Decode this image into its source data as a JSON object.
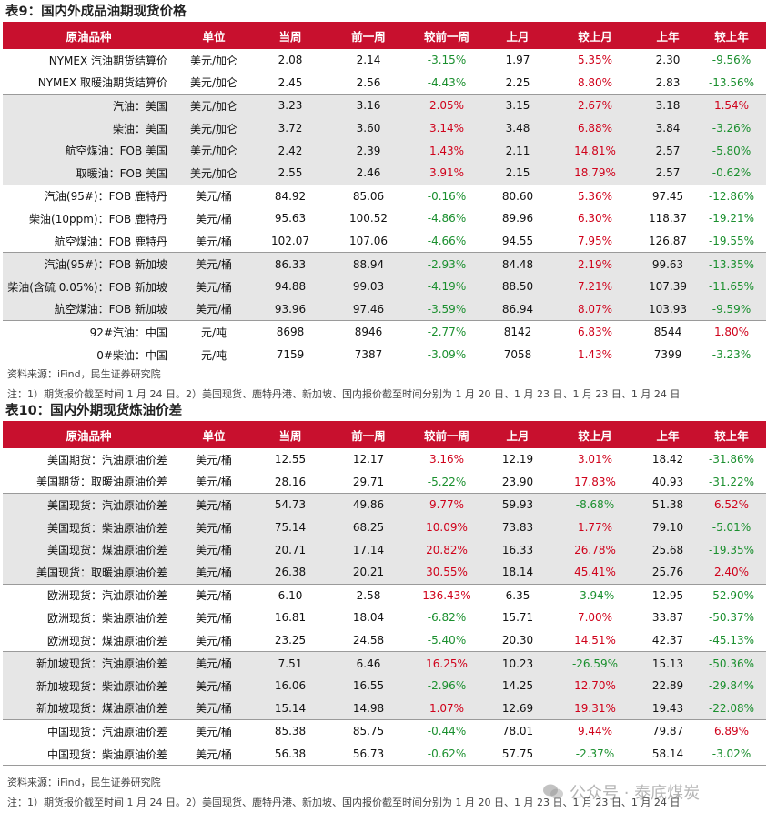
{
  "table9": {
    "title": "表9：国内外成品油期现货价格",
    "headers": [
      "原油品种",
      "单位",
      "当周",
      "前一周",
      "较前一周",
      "上月",
      "较上月",
      "上年",
      "较上年"
    ],
    "rows": [
      [
        "NYMEX 汽油期货结算价",
        "美元/加仑",
        "2.08",
        "2.14",
        "-3.15%",
        "1.97",
        "5.35%",
        "2.30",
        "-9.56%"
      ],
      [
        "NYMEX 取暖油期货结算价",
        "美元/加仑",
        "2.45",
        "2.56",
        "-4.43%",
        "2.25",
        "8.80%",
        "2.83",
        "-13.56%"
      ],
      [
        "汽油：美国",
        "美元/加仑",
        "3.23",
        "3.16",
        "2.05%",
        "3.15",
        "2.67%",
        "3.18",
        "1.54%"
      ],
      [
        "柴油：美国",
        "美元/加仑",
        "3.72",
        "3.60",
        "3.14%",
        "3.48",
        "6.88%",
        "3.84",
        "-3.26%"
      ],
      [
        "航空煤油：FOB 美国",
        "美元/加仑",
        "2.42",
        "2.39",
        "1.43%",
        "2.11",
        "14.81%",
        "2.57",
        "-5.80%"
      ],
      [
        "取暖油：FOB 美国",
        "美元/加仑",
        "2.55",
        "2.46",
        "3.91%",
        "2.15",
        "18.79%",
        "2.57",
        "-0.62%"
      ],
      [
        "汽油(95#)：FOB 鹿特丹",
        "美元/桶",
        "84.92",
        "85.06",
        "-0.16%",
        "80.60",
        "5.36%",
        "97.45",
        "-12.86%"
      ],
      [
        "柴油(10ppm)：FOB 鹿特丹",
        "美元/桶",
        "95.63",
        "100.52",
        "-4.86%",
        "89.96",
        "6.30%",
        "118.37",
        "-19.21%"
      ],
      [
        "航空煤油：FOB 鹿特丹",
        "美元/桶",
        "102.07",
        "107.06",
        "-4.66%",
        "94.55",
        "7.95%",
        "126.87",
        "-19.55%"
      ],
      [
        "汽油(95#)：FOB 新加坡",
        "美元/桶",
        "86.33",
        "88.94",
        "-2.93%",
        "84.48",
        "2.19%",
        "99.63",
        "-13.35%"
      ],
      [
        "柴油(含硫 0.05%)：FOB 新加坡",
        "美元/桶",
        "94.88",
        "99.03",
        "-4.19%",
        "88.50",
        "7.21%",
        "107.39",
        "-11.65%"
      ],
      [
        "航空煤油：FOB 新加坡",
        "美元/桶",
        "93.96",
        "97.46",
        "-3.59%",
        "86.94",
        "8.07%",
        "103.93",
        "-9.59%"
      ],
      [
        "92#汽油：中国",
        "元/吨",
        "8698",
        "8946",
        "-2.77%",
        "8142",
        "6.83%",
        "8544",
        "1.80%"
      ],
      [
        "0#柴油：中国",
        "元/吨",
        "7159",
        "7387",
        "-3.09%",
        "7058",
        "1.43%",
        "7399",
        "-3.23%"
      ]
    ],
    "source": "资料来源：iFind，民生证券研究院",
    "note": "注：1）期货报价截至时间 1 月 24 日。2）美国现货、鹿特丹港、新加坡、国内报价截至时间分别为 1 月 20 日、1 月 23 日、1 月 23 日、1 月 24 日"
  },
  "table10": {
    "title": "表10：国内外期现货炼油价差",
    "headers": [
      "原油品种",
      "单位",
      "当周",
      "前一周",
      "较前一周",
      "上月",
      "较上月",
      "上年",
      "较上年"
    ],
    "rows": [
      [
        "美国期货：汽油原油价差",
        "美元/桶",
        "12.55",
        "12.17",
        "3.16%",
        "12.19",
        "3.01%",
        "18.42",
        "-31.86%"
      ],
      [
        "美国期货：取暖油原油价差",
        "美元/桶",
        "28.16",
        "29.71",
        "-5.22%",
        "23.90",
        "17.83%",
        "40.93",
        "-31.22%"
      ],
      [
        "美国现货：汽油原油价差",
        "美元/桶",
        "54.73",
        "49.86",
        "9.77%",
        "59.93",
        "-8.68%",
        "51.38",
        "6.52%"
      ],
      [
        "美国现货：柴油原油价差",
        "美元/桶",
        "75.14",
        "68.25",
        "10.09%",
        "73.83",
        "1.77%",
        "79.10",
        "-5.01%"
      ],
      [
        "美国现货：煤油原油价差",
        "美元/桶",
        "20.71",
        "17.14",
        "20.82%",
        "16.33",
        "26.78%",
        "25.68",
        "-19.35%"
      ],
      [
        "美国现货：取暖油原油价差",
        "美元/桶",
        "26.38",
        "20.21",
        "30.55%",
        "18.14",
        "45.41%",
        "25.76",
        "2.40%"
      ],
      [
        "欧洲现货：汽油原油价差",
        "美元/桶",
        "6.10",
        "2.58",
        "136.43%",
        "6.35",
        "-3.94%",
        "12.95",
        "-52.90%"
      ],
      [
        "欧洲现货：柴油原油价差",
        "美元/桶",
        "16.81",
        "18.04",
        "-6.82%",
        "15.71",
        "7.00%",
        "33.87",
        "-50.37%"
      ],
      [
        "欧洲现货：煤油原油价差",
        "美元/桶",
        "23.25",
        "24.58",
        "-5.40%",
        "20.30",
        "14.51%",
        "42.37",
        "-45.13%"
      ],
      [
        "新加坡现货：汽油原油价差",
        "美元/桶",
        "7.51",
        "6.46",
        "16.25%",
        "10.23",
        "-26.59%",
        "15.13",
        "-50.36%"
      ],
      [
        "新加坡现货：柴油原油价差",
        "美元/桶",
        "16.06",
        "16.55",
        "-2.96%",
        "14.25",
        "12.70%",
        "22.89",
        "-29.84%"
      ],
      [
        "新加坡现货：煤油原油价差",
        "美元/桶",
        "15.14",
        "14.98",
        "1.07%",
        "12.69",
        "19.31%",
        "19.43",
        "-22.08%"
      ],
      [
        "中国现货：汽油原油价差",
        "美元/桶",
        "85.38",
        "85.75",
        "-0.44%",
        "78.01",
        "9.44%",
        "79.87",
        "6.89%"
      ],
      [
        "中国现货：柴油原油价差",
        "美元/桶",
        "56.38",
        "56.73",
        "-0.62%",
        "57.75",
        "-2.37%",
        "58.14",
        "-3.02%"
      ]
    ],
    "source": "资料来源：iFind，民生证券研究院",
    "note": "注：1）期货报价截至时间 1 月 24 日。2）美国现货、鹿特丹港、新加坡、国内报价截至时间分别为 1 月 20 日、1 月 23 日、1 月 23 日、1 月 24 日"
  },
  "watermark": {
    "text": "公众号 · 泰底煤炭",
    "icon": "wechat-icon"
  },
  "colors": {
    "header_bg": "#c8102e",
    "positive": "#d0021b",
    "negative": "#1a8f2e",
    "band": "#e6e6e6"
  }
}
